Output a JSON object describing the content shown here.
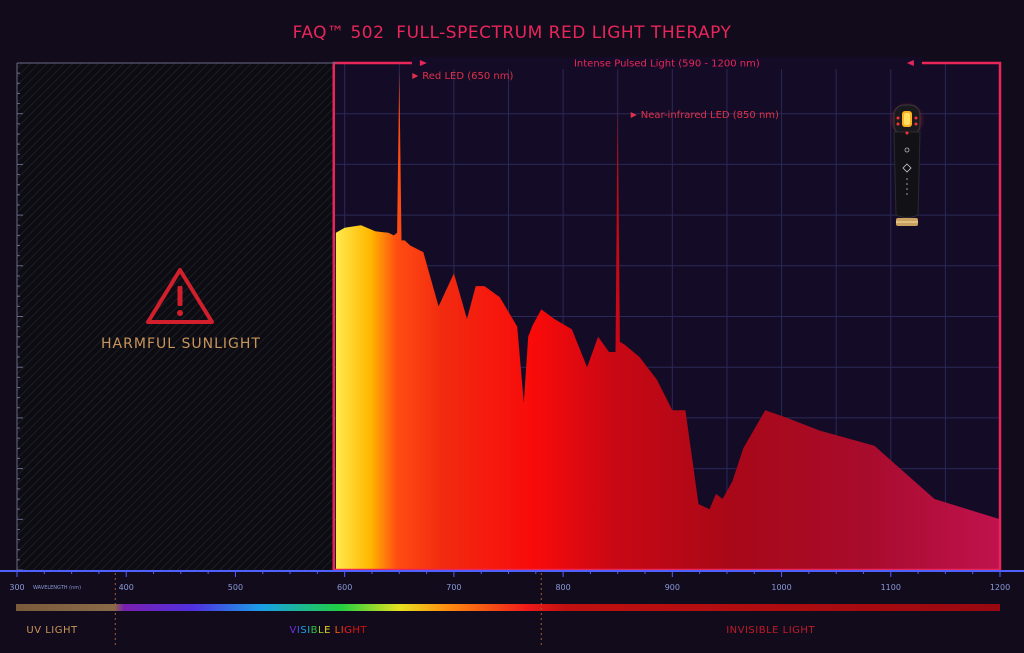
{
  "colors": {
    "background": "#120b1c",
    "accent": "#e8265a",
    "annotation": "#e0304a",
    "warning": "#d1202c",
    "warning_text": "#c8955a",
    "uv_label": "#c8955a",
    "invisible_label": "#c01a2a",
    "axis": "#5060ff"
  },
  "chart_data": {
    "type": "area",
    "title_prefix": "FAQ™ 502",
    "title": "FULL-SPECTRUM RED LIGHT THERAPY",
    "xlabel": "WAVELENGTH (nm)",
    "ylabel": "",
    "xlim": [
      300,
      1200
    ],
    "ylim": [
      0,
      100
    ],
    "grid": true,
    "x_ticks": [
      300,
      400,
      500,
      600,
      700,
      800,
      900,
      1000,
      1100,
      1200
    ],
    "ipl_range_label": "Intense Pulsed Light (590 - 1200 nm)",
    "ipl_range": [
      590,
      1200
    ],
    "harmful_region": {
      "range": [
        300,
        590
      ],
      "label": "HARMFUL SUNLIGHT"
    },
    "annotations": [
      {
        "label": "Red LED (650 nm)",
        "x": 650
      },
      {
        "label": "Near-infrared LED (850 nm)",
        "x": 850
      }
    ],
    "series": [
      {
        "x": [
          592,
          600,
          615,
          628,
          640,
          645,
          648,
          650,
          652,
          655,
          660,
          672,
          686,
          700,
          712,
          720,
          728,
          742,
          758,
          764,
          768,
          772,
          780,
          792,
          808,
          822,
          832,
          842,
          848,
          850,
          852,
          856,
          870,
          886,
          900,
          912,
          924,
          934,
          940,
          946,
          955,
          965,
          985,
          1005,
          1035,
          1085,
          1140,
          1200
        ],
        "values": [
          66.5,
          67.5,
          68,
          66.8,
          66.5,
          66,
          66.5,
          98.5,
          65,
          65,
          64,
          62.7,
          52,
          58.5,
          49.5,
          56,
          56,
          53.8,
          48,
          33,
          46,
          48.2,
          51.4,
          49.5,
          47.5,
          40,
          46,
          43,
          43,
          92,
          45,
          44.5,
          42,
          37.5,
          31.5,
          31.5,
          13,
          12,
          15,
          14,
          17.5,
          24,
          31.5,
          30,
          27.5,
          24.5,
          14,
          10
        ]
      }
    ],
    "bands": [
      {
        "label": "UV LIGHT",
        "range": [
          300,
          390
        ]
      },
      {
        "label": "VISIBLE LIGHT",
        "range": [
          390,
          780
        ]
      },
      {
        "label": "INVISIBLE LIGHT",
        "range": [
          780,
          1200
        ]
      }
    ]
  }
}
